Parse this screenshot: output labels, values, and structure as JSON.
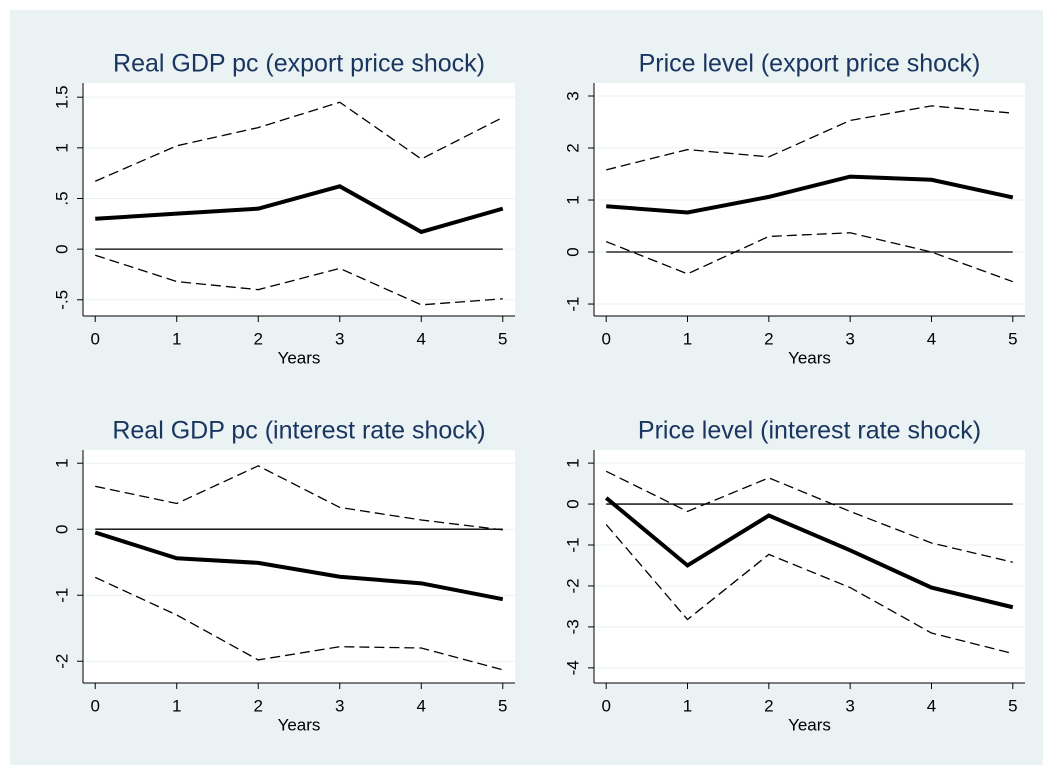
{
  "chart_data": [
    {
      "type": "line",
      "title": "Real GDP pc (export price shock)",
      "x_label": "Years",
      "x": [
        0,
        1,
        2,
        3,
        4,
        5
      ],
      "xlim": [
        -0.15,
        5.15
      ],
      "xticks": [
        0,
        1,
        2,
        3,
        4,
        5
      ],
      "ylim": [
        -0.66,
        1.64
      ],
      "yticks": [
        {
          "value": -0.5,
          "label": "-.5"
        },
        0,
        {
          "value": 0.5,
          "label": ".5"
        },
        1,
        1.5
      ],
      "hline": 0,
      "grid": true,
      "series": [
        {
          "color": "#000000",
          "dash": false,
          "values": [
            0.3,
            0.35,
            0.4,
            0.62,
            0.17,
            0.4
          ]
        },
        {
          "color": "#000000",
          "dash": true,
          "values": [
            0.67,
            1.02,
            1.2,
            1.45,
            0.89,
            1.3
          ]
        },
        {
          "color": "#000000",
          "dash": true,
          "values": [
            -0.06,
            -0.32,
            -0.4,
            -0.19,
            -0.55,
            -0.49
          ]
        }
      ]
    },
    {
      "type": "line",
      "title": "Price level (export price shock)",
      "x_label": "Years",
      "x": [
        0,
        1,
        2,
        3,
        4,
        5
      ],
      "xlim": [
        -0.15,
        5.15
      ],
      "xticks": [
        0,
        1,
        2,
        3,
        4,
        5
      ],
      "ylim": [
        -1.23,
        3.25
      ],
      "yticks": [
        -1,
        0,
        1,
        2,
        3
      ],
      "hline": 0,
      "grid": true,
      "series": [
        {
          "color": "#000000",
          "dash": false,
          "values": [
            0.88,
            0.76,
            1.06,
            1.45,
            1.39,
            1.05
          ]
        },
        {
          "color": "#000000",
          "dash": true,
          "values": [
            1.58,
            1.97,
            1.83,
            2.53,
            2.81,
            2.67
          ]
        },
        {
          "color": "#000000",
          "dash": true,
          "values": [
            0.2,
            -0.42,
            0.3,
            0.37,
            0.0,
            -0.57
          ]
        }
      ]
    },
    {
      "type": "line",
      "title": "Real GDP pc (interest rate shock)",
      "x_label": "Years",
      "x": [
        0,
        1,
        2,
        3,
        4,
        5
      ],
      "xlim": [
        -0.15,
        5.15
      ],
      "xticks": [
        0,
        1,
        2,
        3,
        4,
        5
      ],
      "ylim": [
        -2.33,
        1.2
      ],
      "yticks": [
        -2,
        -1,
        0,
        1
      ],
      "hline": 0,
      "grid": true,
      "series": [
        {
          "color": "#000000",
          "dash": false,
          "values": [
            -0.05,
            -0.44,
            -0.51,
            -0.72,
            -0.82,
            -1.06
          ]
        },
        {
          "color": "#000000",
          "dash": true,
          "values": [
            0.65,
            0.39,
            0.96,
            0.33,
            0.14,
            -0.01
          ]
        },
        {
          "color": "#000000",
          "dash": true,
          "values": [
            -0.73,
            -1.3,
            -1.98,
            -1.78,
            -1.8,
            -2.13
          ]
        }
      ]
    },
    {
      "type": "line",
      "title": "Price level (interest rate shock)",
      "x_label": "Years",
      "x": [
        0,
        1,
        2,
        3,
        4,
        5
      ],
      "xlim": [
        -0.15,
        5.15
      ],
      "xticks": [
        0,
        1,
        2,
        3,
        4,
        5
      ],
      "ylim": [
        -4.37,
        1.32
      ],
      "yticks": [
        -4,
        -3,
        -2,
        -1,
        0,
        1
      ],
      "hline": 0,
      "grid": true,
      "series": [
        {
          "color": "#000000",
          "dash": false,
          "values": [
            0.15,
            -1.5,
            -0.28,
            -1.13,
            -2.04,
            -2.52
          ]
        },
        {
          "color": "#000000",
          "dash": true,
          "values": [
            0.8,
            -0.18,
            0.64,
            -0.18,
            -0.95,
            -1.42
          ]
        },
        {
          "color": "#000000",
          "dash": true,
          "values": [
            -0.5,
            -2.82,
            -1.23,
            -2.04,
            -3.15,
            -3.65
          ]
        }
      ]
    }
  ]
}
